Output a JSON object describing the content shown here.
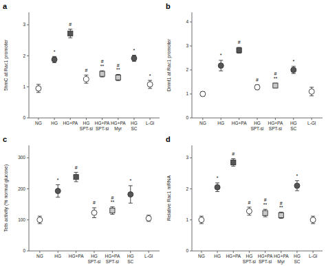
{
  "chart_data": [
    {
      "type": "dot",
      "title": "a",
      "ylabel": "5hmC at Rac1 promoter",
      "ylim": [
        0,
        3.4
      ],
      "yticks": [
        0,
        1,
        2,
        3
      ],
      "categories": [
        "NG",
        "HG",
        "HG+PA",
        "HG\nSPT-si",
        "HG+PA\nSPT-si",
        "HG+PA\nMyr",
        "HG\nSC",
        "L-Gl"
      ],
      "series": [
        {
          "marker": "circle",
          "color": "#ffffff",
          "values": [
            0.95,
            null,
            null,
            1.25,
            null,
            null,
            null,
            1.08
          ],
          "errors": [
            0.13,
            null,
            null,
            0.13,
            null,
            null,
            null,
            0.13
          ]
        },
        {
          "marker": "circle",
          "color": "#555555",
          "values": [
            null,
            1.88,
            null,
            null,
            null,
            null,
            1.92,
            null
          ],
          "errors": [
            null,
            0.1,
            null,
            null,
            null,
            null,
            0.1,
            null
          ]
        },
        {
          "marker": "square",
          "color": "#555555",
          "values": [
            null,
            null,
            2.72,
            null,
            null,
            null,
            null,
            null
          ],
          "errors": [
            null,
            null,
            0.14,
            null,
            null,
            null,
            null,
            null
          ]
        },
        {
          "marker": "square",
          "color": "#c8c8c8",
          "values": [
            null,
            null,
            null,
            null,
            1.42,
            1.3,
            null,
            null
          ],
          "errors": [
            null,
            null,
            null,
            null,
            0.1,
            0.1,
            null,
            null
          ]
        }
      ],
      "annotations": [
        null,
        "*",
        "#",
        "#",
        "#\n**",
        "#\n**",
        "*",
        "*"
      ]
    },
    {
      "type": "dot",
      "title": "b",
      "ylabel": "Dnmt1 at Rac1 promoter",
      "ylim": [
        0,
        4.4
      ],
      "yticks": [
        0,
        1,
        2,
        3,
        4
      ],
      "categories": [
        "NG",
        "HG",
        "HG+PA",
        "HG\nSPT-si",
        "HG+PA\nSPT-si",
        "HG\nSC",
        "L-Gl"
      ],
      "series": [
        {
          "marker": "circle",
          "color": "#ffffff",
          "values": [
            1.0,
            null,
            null,
            1.28,
            null,
            null,
            1.1
          ],
          "errors": [
            0.1,
            null,
            null,
            0.1,
            null,
            null,
            0.18
          ]
        },
        {
          "marker": "circle",
          "color": "#555555",
          "values": [
            null,
            2.18,
            null,
            null,
            null,
            2.0,
            null
          ],
          "errors": [
            null,
            0.22,
            null,
            null,
            null,
            0.15,
            null
          ]
        },
        {
          "marker": "square",
          "color": "#555555",
          "values": [
            null,
            null,
            2.82,
            null,
            null,
            null,
            null
          ],
          "errors": [
            null,
            null,
            0.12,
            null,
            null,
            null,
            null
          ]
        },
        {
          "marker": "square",
          "color": "#c8c8c8",
          "values": [
            null,
            null,
            null,
            null,
            1.35,
            null,
            null
          ],
          "errors": [
            null,
            null,
            null,
            null,
            0.1,
            null,
            null
          ]
        }
      ],
      "annotations": [
        null,
        "*",
        "#",
        "#",
        "#\n**",
        "*",
        null
      ]
    },
    {
      "type": "dot",
      "title": "c",
      "ylabel": "Tets activity (% normal glucose)",
      "ylim": [
        0,
        340
      ],
      "yticks": [
        0,
        100,
        200,
        300
      ],
      "categories": [
        "NG",
        "HG",
        "HG+PA",
        "HG\nSPT-si",
        "HG+PA\nSPT-si",
        "HG\nSC",
        "L-Gl"
      ],
      "series": [
        {
          "marker": "circle",
          "color": "#ffffff",
          "values": [
            100,
            null,
            null,
            123,
            null,
            null,
            105
          ],
          "errors": [
            12,
            null,
            null,
            16,
            null,
            null,
            10
          ]
        },
        {
          "marker": "circle",
          "color": "#555555",
          "values": [
            null,
            193,
            null,
            null,
            null,
            182,
            null
          ],
          "errors": [
            null,
            20,
            null,
            null,
            null,
            28,
            null
          ]
        },
        {
          "marker": "square",
          "color": "#555555",
          "values": [
            null,
            null,
            238,
            null,
            null,
            null,
            null
          ],
          "errors": [
            null,
            null,
            15,
            null,
            null,
            null,
            null
          ]
        },
        {
          "marker": "square",
          "color": "#c8c8c8",
          "values": [
            null,
            null,
            null,
            null,
            130,
            null,
            null
          ],
          "errors": [
            null,
            null,
            null,
            null,
            12,
            null,
            null
          ]
        }
      ],
      "annotations": [
        null,
        "*",
        "#",
        "#",
        "#\n**",
        "*",
        null
      ]
    },
    {
      "type": "dot",
      "title": "d",
      "ylabel": "Relative Rac1 mRNA",
      "ylim": [
        0,
        3.4
      ],
      "yticks": [
        0,
        1,
        2,
        3
      ],
      "categories": [
        "NG",
        "HG",
        "HG+PA",
        "HG\nSPT-si",
        "HG+PA\nSPT-si",
        "HG+PA\nMyr",
        "HG\nSC",
        "L-Gl"
      ],
      "series": [
        {
          "marker": "circle",
          "color": "#ffffff",
          "values": [
            1.0,
            null,
            null,
            1.28,
            null,
            null,
            null,
            1.0
          ],
          "errors": [
            0.12,
            null,
            null,
            0.13,
            null,
            null,
            null,
            0.12
          ]
        },
        {
          "marker": "circle",
          "color": "#555555",
          "values": [
            null,
            2.05,
            null,
            null,
            null,
            null,
            2.1,
            null
          ],
          "errors": [
            null,
            0.14,
            null,
            null,
            null,
            null,
            0.16,
            null
          ]
        },
        {
          "marker": "square",
          "color": "#555555",
          "values": [
            null,
            null,
            2.85,
            null,
            null,
            null,
            null,
            null
          ],
          "errors": [
            null,
            null,
            0.12,
            null,
            null,
            null,
            null,
            null
          ]
        },
        {
          "marker": "square",
          "color": "#c8c8c8",
          "values": [
            null,
            null,
            null,
            null,
            1.22,
            1.15,
            null,
            null
          ],
          "errors": [
            null,
            null,
            null,
            null,
            0.12,
            0.1,
            null,
            null
          ]
        }
      ],
      "annotations": [
        null,
        "*",
        "#",
        "#",
        "#\n**",
        "#\n**",
        "*",
        null
      ]
    }
  ]
}
